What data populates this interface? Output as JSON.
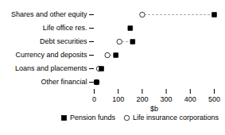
{
  "chart_data": {
    "type": "dumbbell",
    "orientation": "horizontal",
    "xlabel": "$b",
    "categories": [
      "Shares and other equity",
      "Life office res.",
      "Debt securities",
      "Currency and deposits",
      "Loans and placements",
      "Other financial"
    ],
    "series": [
      {
        "name": "Pension funds",
        "color": "#000000",
        "marker": "square",
        "values": [
          500,
          150,
          160,
          90,
          30,
          10
        ]
      },
      {
        "name": "Life insurance corporations",
        "color": "#ffffff",
        "marker": "circle",
        "values": [
          200,
          null,
          105,
          55,
          20,
          10
        ]
      }
    ],
    "color": "#aaaaaa",
    "line_style": "dashed",
    "xlim": [
      0,
      500
    ],
    "xticks": [
      0,
      100,
      200,
      300,
      400,
      500
    ],
    "grid": false,
    "legend": "lower right"
  }
}
